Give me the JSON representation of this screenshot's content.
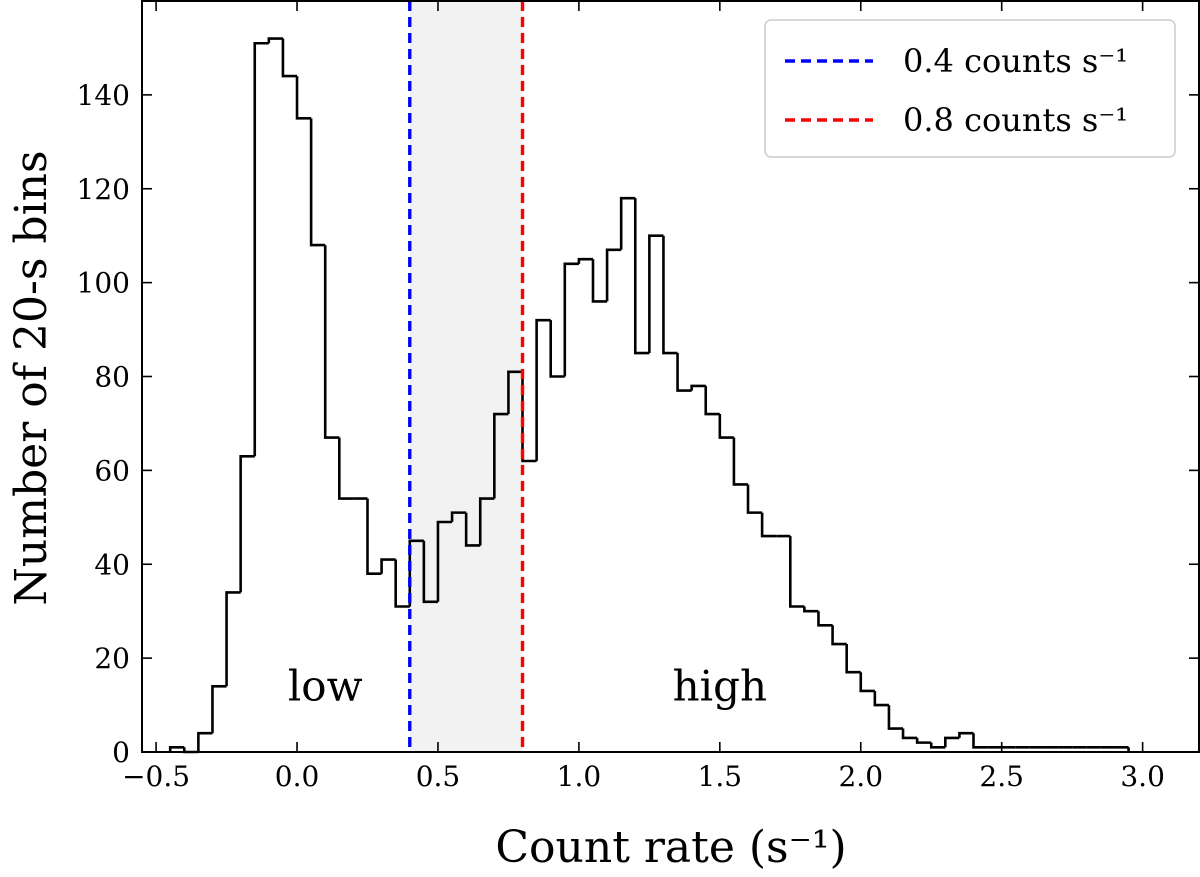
{
  "chart_data": {
    "type": "bar",
    "histogram": true,
    "title": "",
    "xlabel": "Count rate (s⁻¹)",
    "ylabel": "Number of 20-s bins",
    "xlim": [
      -0.55,
      3.2
    ],
    "ylim": [
      0,
      160
    ],
    "xticks": [
      -0.5,
      0.0,
      0.5,
      1.0,
      1.5,
      2.0,
      2.5,
      3.0
    ],
    "xtick_labels": [
      "−0.5",
      "0.0",
      "0.5",
      "1.0",
      "1.5",
      "2.0",
      "2.5",
      "3.0"
    ],
    "yticks": [
      0,
      20,
      40,
      60,
      80,
      100,
      120,
      140
    ],
    "ytick_labels": [
      "0",
      "20",
      "40",
      "60",
      "80",
      "100",
      "120",
      "140"
    ],
    "grid": false,
    "legend_position": "top-right",
    "bin_edges": [
      -0.45,
      -0.4,
      -0.35,
      -0.3,
      -0.25,
      -0.2,
      -0.15,
      -0.1,
      -0.05,
      0.0,
      0.05,
      0.1,
      0.15,
      0.2,
      0.25,
      0.3,
      0.35,
      0.4,
      0.45,
      0.5,
      0.55,
      0.6,
      0.65,
      0.7,
      0.75,
      0.8,
      0.85,
      0.9,
      0.95,
      1.0,
      1.05,
      1.1,
      1.15,
      1.2,
      1.25,
      1.3,
      1.35,
      1.4,
      1.45,
      1.5,
      1.55,
      1.6,
      1.65,
      1.7,
      1.75,
      1.8,
      1.85,
      1.9,
      1.95,
      2.0,
      2.05,
      2.1,
      2.15,
      2.2,
      2.25,
      2.3,
      2.35,
      2.4,
      2.45,
      2.5,
      2.55,
      2.6,
      2.65,
      2.7,
      2.75,
      2.8,
      2.85,
      2.9,
      2.95
    ],
    "counts": [
      1,
      0,
      4,
      14,
      34,
      63,
      151,
      152,
      144,
      135,
      108,
      67,
      54,
      54,
      38,
      41,
      31,
      45,
      32,
      49,
      51,
      44,
      54,
      72,
      81,
      62,
      92,
      80,
      104,
      105,
      96,
      107,
      118,
      85,
      110,
      85,
      77,
      78,
      72,
      67,
      57,
      51,
      46,
      46,
      31,
      30,
      27,
      23,
      17,
      13,
      10,
      5,
      3,
      2,
      1,
      3,
      4,
      1,
      1,
      1,
      1,
      1,
      1,
      1,
      1,
      1,
      1,
      1
    ],
    "thresholds": [
      {
        "x": 0.4,
        "label": "0.4 counts s⁻¹",
        "color": "#0000ff"
      },
      {
        "x": 0.8,
        "label": "0.8 counts s⁻¹",
        "color": "#ff0000"
      }
    ],
    "shaded_region": {
      "x": [
        0.4,
        0.8
      ],
      "color": "#f2f2f2"
    },
    "annotations": [
      {
        "text": "low",
        "x": 0.1,
        "y": 11
      },
      {
        "text": "high",
        "x": 1.5,
        "y": 11
      }
    ],
    "colors": {
      "histogram": "#000000"
    }
  }
}
